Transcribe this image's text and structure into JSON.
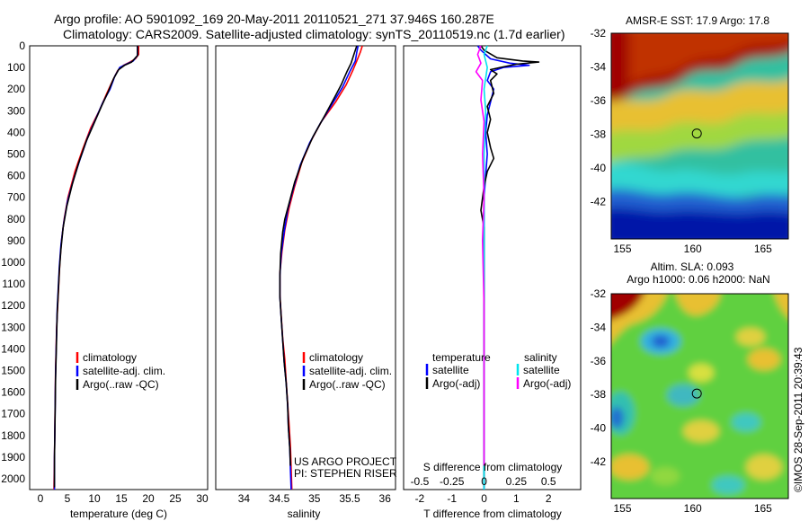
{
  "header": {
    "line1": "Argo profile: AO 5901092_169 20-May-2011 20110521_271 37.946S 160.287E",
    "line2": "Climatology: CARS2009. Satellite-adjusted climatology: synTS_20110519.nc (1.7d earlier)"
  },
  "credit": "©IMOS 28-Sep-2011 20:39:43",
  "chart_data": [
    {
      "id": "temperature",
      "type": "line",
      "xlabel": "temperature (deg C)",
      "ylabel": "",
      "xlim": [
        -2,
        31
      ],
      "ylim": [
        2050,
        0
      ],
      "xticks": [
        0,
        5,
        10,
        15,
        20,
        25,
        30
      ],
      "yticks": [
        0,
        100,
        200,
        300,
        400,
        500,
        600,
        700,
        800,
        900,
        1000,
        1100,
        1200,
        1300,
        1400,
        1500,
        1600,
        1700,
        1800,
        1900,
        2000
      ],
      "legend": [
        "climatology",
        "satellite-adj. clim.",
        "Argo(..raw -QC)"
      ],
      "legend_colors": [
        "#ff0000",
        "#0000ff",
        "#000000"
      ],
      "series": [
        {
          "name": "climatology",
          "color": "#ff0000",
          "points": [
            [
              18.2,
              0
            ],
            [
              18.2,
              40
            ],
            [
              17.6,
              60
            ],
            [
              16.6,
              75
            ],
            [
              15.4,
              90
            ],
            [
              14.3,
              115
            ],
            [
              13.4,
              160
            ],
            [
              12.3,
              220
            ],
            [
              10.9,
              300
            ],
            [
              9.3,
              380
            ],
            [
              7.8,
              480
            ],
            [
              6.4,
              580
            ],
            [
              5.1,
              700
            ],
            [
              4.4,
              800
            ],
            [
              3.9,
              900
            ],
            [
              3.6,
              1000
            ],
            [
              3.4,
              1100
            ],
            [
              3.2,
              1200
            ],
            [
              3.0,
              1300
            ],
            [
              2.9,
              1400
            ],
            [
              2.8,
              1500
            ],
            [
              2.7,
              1700
            ],
            [
              2.6,
              1900
            ],
            [
              2.5,
              2050
            ]
          ]
        },
        {
          "name": "satellite-adj. clim.",
          "color": "#0000ff",
          "points": [
            [
              18.0,
              0
            ],
            [
              18.0,
              45
            ],
            [
              17.2,
              70
            ],
            [
              15.9,
              85
            ],
            [
              14.7,
              100
            ],
            [
              13.8,
              140
            ],
            [
              12.9,
              200
            ],
            [
              11.6,
              260
            ],
            [
              10.2,
              340
            ],
            [
              8.8,
              420
            ],
            [
              7.4,
              520
            ],
            [
              6.1,
              620
            ],
            [
              5.0,
              720
            ],
            [
              4.3,
              820
            ],
            [
              3.8,
              920
            ],
            [
              3.5,
              1020
            ],
            [
              3.3,
              1120
            ],
            [
              3.1,
              1220
            ],
            [
              3.0,
              1320
            ],
            [
              2.9,
              1420
            ],
            [
              2.8,
              1520
            ],
            [
              2.7,
              1720
            ],
            [
              2.6,
              1900
            ],
            [
              2.6,
              2050
            ]
          ]
        },
        {
          "name": "Argo(..raw -QC)",
          "color": "#000000",
          "points": [
            [
              18.0,
              0
            ],
            [
              18.0,
              45
            ],
            [
              16.9,
              75
            ],
            [
              15.6,
              90
            ],
            [
              14.5,
              110
            ],
            [
              13.6,
              150
            ],
            [
              12.6,
              210
            ],
            [
              11.3,
              280
            ],
            [
              9.9,
              360
            ],
            [
              8.5,
              440
            ],
            [
              7.1,
              540
            ],
            [
              5.9,
              640
            ],
            [
              4.9,
              740
            ],
            [
              4.2,
              840
            ],
            [
              3.8,
              940
            ],
            [
              3.5,
              1040
            ],
            [
              3.3,
              1140
            ],
            [
              3.1,
              1240
            ],
            [
              3.0,
              1340
            ],
            [
              2.9,
              1440
            ],
            [
              2.8,
              1540
            ],
            [
              2.7,
              1740
            ],
            [
              2.6,
              1900
            ],
            [
              2.6,
              2040
            ]
          ]
        }
      ]
    },
    {
      "id": "salinity",
      "type": "line",
      "xlabel": "salinity",
      "xlim": [
        33.6,
        36.15
      ],
      "ylim": [
        2050,
        0
      ],
      "xticks": [
        34,
        34.5,
        35,
        35.5,
        36
      ],
      "legend": [
        "climatology",
        "satellite-adj. clim.",
        "Argo(..raw -QC)"
      ],
      "legend_colors": [
        "#ff0000",
        "#0000ff",
        "#000000"
      ],
      "annotation": [
        "US ARGO PROJECT",
        "PI: STEPHEN RISER"
      ],
      "series": [
        {
          "name": "climatology",
          "color": "#ff0000",
          "points": [
            [
              35.68,
              0
            ],
            [
              35.65,
              30
            ],
            [
              35.6,
              70
            ],
            [
              35.55,
              110
            ],
            [
              35.45,
              180
            ],
            [
              35.3,
              260
            ],
            [
              35.1,
              350
            ],
            [
              34.95,
              440
            ],
            [
              34.82,
              540
            ],
            [
              34.72,
              650
            ],
            [
              34.64,
              750
            ],
            [
              34.58,
              850
            ],
            [
              34.54,
              950
            ],
            [
              34.51,
              1050
            ],
            [
              34.51,
              1150
            ],
            [
              34.53,
              1250
            ],
            [
              34.55,
              1350
            ],
            [
              34.58,
              1450
            ],
            [
              34.6,
              1550
            ],
            [
              34.62,
              1650
            ],
            [
              34.64,
              1750
            ],
            [
              34.66,
              1850
            ],
            [
              34.67,
              1950
            ],
            [
              34.68,
              2050
            ]
          ]
        },
        {
          "name": "satellite-adj. clim.",
          "color": "#0000ff",
          "points": [
            [
              35.62,
              0
            ],
            [
              35.6,
              30
            ],
            [
              35.58,
              70
            ],
            [
              35.5,
              120
            ],
            [
              35.4,
              190
            ],
            [
              35.25,
              270
            ],
            [
              35.08,
              360
            ],
            [
              34.93,
              450
            ],
            [
              34.8,
              550
            ],
            [
              34.7,
              660
            ],
            [
              34.62,
              760
            ],
            [
              34.57,
              860
            ],
            [
              34.53,
              960
            ],
            [
              34.51,
              1060
            ],
            [
              34.51,
              1160
            ],
            [
              34.53,
              1260
            ],
            [
              34.55,
              1360
            ],
            [
              34.57,
              1460
            ],
            [
              34.6,
              1560
            ],
            [
              34.62,
              1660
            ],
            [
              34.63,
              1760
            ],
            [
              34.65,
              1860
            ],
            [
              34.66,
              1960
            ],
            [
              34.67,
              2050
            ]
          ]
        },
        {
          "name": "Argo(..raw -QC)",
          "color": "#000000",
          "points": [
            [
              35.6,
              0
            ],
            [
              35.56,
              40
            ],
            [
              35.52,
              80
            ],
            [
              35.46,
              120
            ],
            [
              35.38,
              180
            ],
            [
              35.3,
              230
            ],
            [
              35.15,
              320
            ],
            [
              34.98,
              420
            ],
            [
              34.84,
              520
            ],
            [
              34.72,
              630
            ],
            [
              34.63,
              740
            ],
            [
              34.58,
              800
            ],
            [
              34.55,
              860
            ],
            [
              34.52,
              960
            ],
            [
              34.51,
              1060
            ],
            [
              34.51,
              1160
            ],
            [
              34.53,
              1260
            ],
            [
              34.55,
              1360
            ],
            [
              34.57,
              1460
            ],
            [
              34.6,
              1560
            ],
            [
              34.62,
              1660
            ],
            [
              34.63,
              1760
            ],
            [
              34.65,
              1860
            ],
            [
              34.66,
              1940
            ]
          ]
        }
      ]
    },
    {
      "id": "differences",
      "type": "line",
      "xlabel": "T difference from climatology",
      "xlabel_top": "S difference from climatology",
      "xlim": [
        -2.5,
        3
      ],
      "ylim": [
        2050,
        0
      ],
      "xticks": [
        -2,
        -1,
        0,
        1,
        2
      ],
      "xticks_top": [
        "-0.5",
        "-0.25",
        "0",
        "0.25",
        "0.5"
      ],
      "xticks_top_pos": [
        -2,
        -1,
        0,
        1,
        2
      ],
      "legend_groups": [
        {
          "title": "temperature",
          "items": [
            "satellite",
            "Argo(-adj)"
          ],
          "colors": [
            "#0000ff",
            "#000000"
          ]
        },
        {
          "title": "salinity",
          "items": [
            "satellite",
            "Argo(-adj)"
          ],
          "colors": [
            "#00e5ee",
            "#ff00ff"
          ]
        }
      ],
      "series": [
        {
          "name": "T satellite",
          "color": "#0000ff",
          "points": [
            [
              -0.2,
              0
            ],
            [
              -0.1,
              20
            ],
            [
              0.2,
              60
            ],
            [
              0.8,
              80
            ],
            [
              1.4,
              90
            ],
            [
              0.6,
              100
            ],
            [
              0.2,
              120
            ],
            [
              0.1,
              160
            ],
            [
              0.3,
              200
            ],
            [
              0.2,
              260
            ],
            [
              0.1,
              320
            ],
            [
              0.05,
              400
            ],
            [
              0.1,
              500
            ],
            [
              0.05,
              600
            ],
            [
              0.0,
              700
            ],
            [
              0.0,
              800
            ],
            [
              0.0,
              1000
            ],
            [
              0.0,
              1200
            ],
            [
              0.0,
              1500
            ],
            [
              0.0,
              1800
            ],
            [
              0.0,
              2050
            ]
          ]
        },
        {
          "name": "T Argo(-adj)",
          "color": "#000000",
          "points": [
            [
              -0.1,
              0
            ],
            [
              0.0,
              20
            ],
            [
              0.4,
              55
            ],
            [
              1.2,
              70
            ],
            [
              1.7,
              75
            ],
            [
              1.0,
              85
            ],
            [
              0.5,
              100
            ],
            [
              0.2,
              110
            ],
            [
              0.4,
              130
            ],
            [
              0.2,
              160
            ],
            [
              0.3,
              220
            ],
            [
              0.1,
              280
            ],
            [
              0.2,
              340
            ],
            [
              0.1,
              400
            ],
            [
              0.2,
              470
            ],
            [
              0.3,
              520
            ],
            [
              0.1,
              580
            ],
            [
              0.0,
              650
            ],
            [
              -0.1,
              760
            ],
            [
              0.0,
              840
            ],
            [
              0.0,
              1000
            ],
            [
              0.0,
              1300
            ],
            [
              0.0,
              1600
            ],
            [
              0.0,
              1900
            ],
            [
              0.0,
              2040
            ]
          ]
        },
        {
          "name": "S satellite",
          "color": "#00e5ee",
          "points": [
            [
              0.1,
              0
            ],
            [
              0.0,
              40
            ],
            [
              0.1,
              100
            ],
            [
              0.0,
              200
            ],
            [
              0.05,
              300
            ],
            [
              0.0,
              500
            ],
            [
              0.0,
              800
            ],
            [
              0.0,
              1200
            ],
            [
              0.0,
              1600
            ],
            [
              0.0,
              2050
            ]
          ]
        },
        {
          "name": "S Argo(-adj)",
          "color": "#ff00ff",
          "points": [
            [
              -0.1,
              0
            ],
            [
              -0.2,
              40
            ],
            [
              -0.1,
              80
            ],
            [
              -0.25,
              120
            ],
            [
              -0.05,
              160
            ],
            [
              -0.1,
              250
            ],
            [
              0.0,
              350
            ],
            [
              -0.05,
              500
            ],
            [
              0.0,
              700
            ],
            [
              -0.05,
              900
            ],
            [
              0.0,
              1200
            ],
            [
              0.0,
              1600
            ],
            [
              0.0,
              1940
            ]
          ]
        }
      ]
    },
    {
      "id": "sst-map",
      "type": "heatmap",
      "title": "AMSR-E SST: 17.9 Argo: 17.8",
      "xlim": [
        154.2,
        166.8
      ],
      "ylim": [
        -44.2,
        -32
      ],
      "xticks": [
        155,
        160,
        165
      ],
      "yticks": [
        -32,
        -34,
        -36,
        -38,
        -40,
        -42
      ],
      "marker": [
        160.287,
        -37.946
      ]
    },
    {
      "id": "sla-map",
      "type": "heatmap",
      "title": "Altim. SLA: 0.093",
      "subtitle": "Argo h1000: 0.06 h2000: NaN",
      "xlim": [
        154.2,
        166.8
      ],
      "ylim": [
        -44.2,
        -32
      ],
      "xticks": [
        155,
        160,
        165
      ],
      "yticks": [
        -32,
        -34,
        -36,
        -38,
        -40,
        -42
      ],
      "marker": [
        160.287,
        -37.946
      ]
    }
  ]
}
